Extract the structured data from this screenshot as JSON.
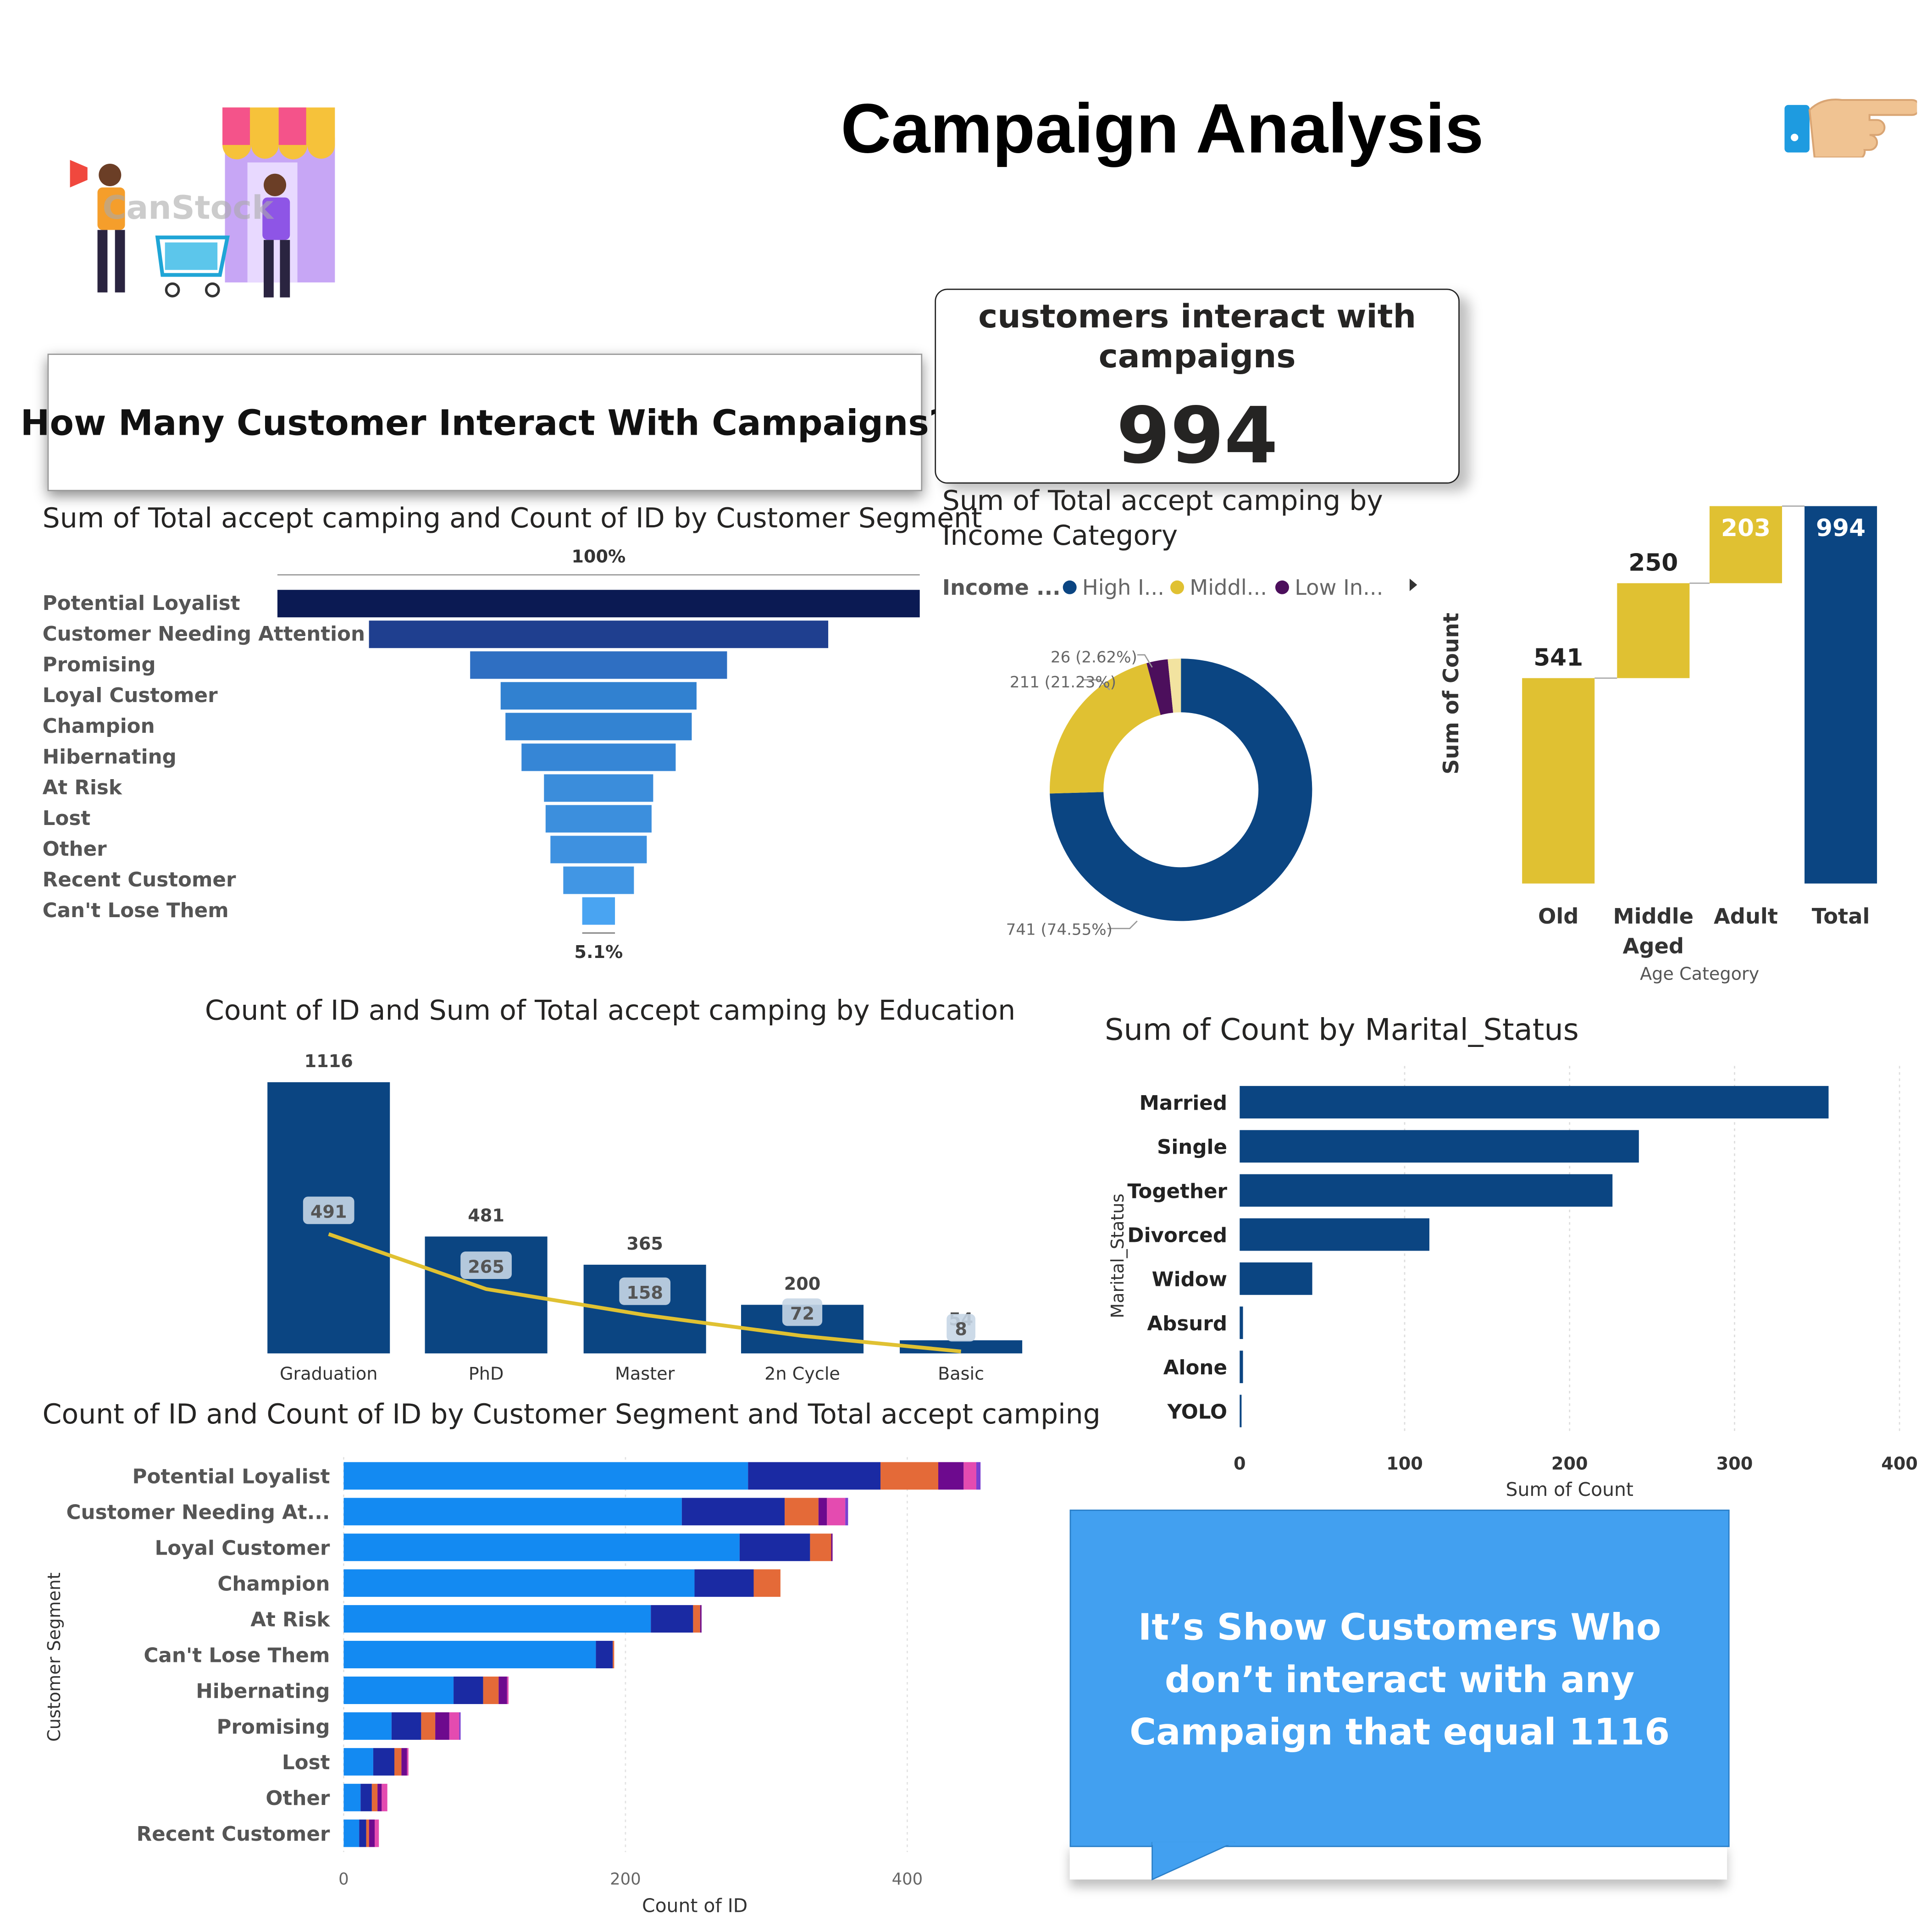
{
  "header": {
    "title": "Campaign Analysis",
    "question": "How Many Customer Interact With Campaigns?",
    "watermark": "CanStock"
  },
  "kpi": {
    "label": "customers interact with campaigns",
    "value": "994"
  },
  "funnel": {
    "title": "Sum of Total accept camping and Count of ID by Customer Segment",
    "top_label": "100%",
    "bottom_label": "5.1%"
  },
  "donut": {
    "title": "Sum of Total accept camping by Income Category",
    "legend_title": "Income ...",
    "legend_labels": [
      "High I...",
      "Middl...",
      "Low In..."
    ],
    "slice_labels": [
      "741 (74.55%)",
      "211 (21.23%)",
      "26 (2.62%)"
    ]
  },
  "waterfall": {
    "title": "",
    "ylabel": "Sum of Count",
    "xlabel": "Age Category"
  },
  "education": {
    "title": "Count of ID and Sum of Total accept camping by Education"
  },
  "marital": {
    "title": "Sum of Count by Marital_Status",
    "xlabel": "Sum of Count",
    "ylabel": "Marital_Status"
  },
  "segment_stack": {
    "title": "Count of ID and Count of ID by Customer Segment and Total accept camping",
    "xlabel": "Count of ID",
    "ylabel": "Customer Segment"
  },
  "callout": {
    "text": "It’s Show Customers Who don’t interact with any Campaign that equal 1116"
  },
  "chart_data": [
    {
      "id": "funnel",
      "type": "bar",
      "subtype": "funnel",
      "color": "#1976D2",
      "categories": [
        "Potential Loyalist",
        "Customer Needing Attention",
        "Promising",
        "Loyal Customer",
        "Champion",
        "Hibernating",
        "At Risk",
        "Lost",
        "Other",
        "Recent Customer",
        "Can't Lose Them"
      ],
      "values": [
        100,
        71.5,
        40,
        30.5,
        29,
        24,
        17,
        16.5,
        15,
        11,
        5.1
      ],
      "value_unit": "% of first",
      "colors": [
        "#0B1A53",
        "#1F3F8F",
        "#2F6FC2",
        "#3181D0",
        "#3383D2",
        "#3686D6",
        "#3B8DDB",
        "#3C8FDD",
        "#3E91E0",
        "#4196E4",
        "#49A4F2"
      ]
    },
    {
      "id": "donut",
      "type": "pie",
      "categories": [
        "High Income",
        "Middle Income",
        "Low Income"
      ],
      "values": [
        741,
        211,
        26
      ],
      "extra_small_slice_value": 16,
      "colors": [
        "#0B4582",
        "#E0C132",
        "#4C0F5C",
        "#F2E3A0"
      ]
    },
    {
      "id": "waterfall",
      "type": "bar",
      "subtype": "waterfall",
      "categories": [
        "Old",
        "Middle Aged",
        "Adult",
        "Total"
      ],
      "values": [
        541,
        250,
        203,
        994
      ],
      "colors": [
        "#E0C132",
        "#E0C132",
        "#E0C132",
        "#0B4582"
      ]
    },
    {
      "id": "education",
      "type": "bar",
      "subtype": "bar+line",
      "categories": [
        "Graduation",
        "PhD",
        "Master",
        "2n Cycle",
        "Basic"
      ],
      "series": [
        {
          "name": "Count of ID",
          "values": [
            1116,
            481,
            365,
            200,
            54
          ]
        },
        {
          "name": "Sum of Total accept camping",
          "values": [
            491,
            265,
            158,
            72,
            8
          ]
        }
      ],
      "colors": [
        "#0B4582",
        "#E0C132"
      ]
    },
    {
      "id": "marital",
      "type": "bar",
      "orientation": "horizontal",
      "categories": [
        "Married",
        "Single",
        "Together",
        "Divorced",
        "Widow",
        "Absurd",
        "Alone",
        "YOLO"
      ],
      "values": [
        357,
        242,
        226,
        115,
        44,
        2,
        2,
        1
      ],
      "xlim": [
        0,
        400
      ],
      "xticks": [
        "0",
        "100",
        "200",
        "300",
        "400"
      ],
      "color": "#0B4582"
    },
    {
      "id": "segment_stack",
      "type": "bar",
      "orientation": "horizontal",
      "stacked": true,
      "categories": [
        "Potential Loyalist",
        "Customer Needing At...",
        "Loyal Customer",
        "Champion",
        "At Risk",
        "Can't Lose Them",
        "Hibernating",
        "Promising",
        "Lost",
        "Other",
        "Recent Customer"
      ],
      "series": [
        {
          "values": [
            287,
            240,
            281,
            249,
            218,
            179,
            78,
            34,
            21,
            12,
            11
          ]
        },
        {
          "values": [
            94,
            73,
            50,
            42,
            30,
            12,
            21,
            21,
            15,
            8,
            5
          ]
        },
        {
          "values": [
            41,
            24,
            15,
            19,
            5,
            1,
            11,
            10,
            5,
            4,
            2
          ]
        },
        {
          "values": [
            18,
            6,
            1,
            0,
            1,
            0,
            6,
            10,
            4,
            3,
            4
          ]
        },
        {
          "values": [
            9,
            13,
            0,
            0,
            0,
            0,
            1,
            7,
            1,
            4,
            3
          ]
        },
        {
          "values": [
            3,
            2,
            0,
            0,
            0,
            0,
            0,
            1,
            0,
            0,
            0
          ]
        }
      ],
      "colors": [
        "#138AF2",
        "#1A2AA3",
        "#E46A38",
        "#6D0A8E",
        "#E44BB0",
        "#7A3FD0"
      ],
      "xlim": [
        0,
        450
      ],
      "xticks": [
        "0",
        "200",
        "400"
      ]
    }
  ]
}
